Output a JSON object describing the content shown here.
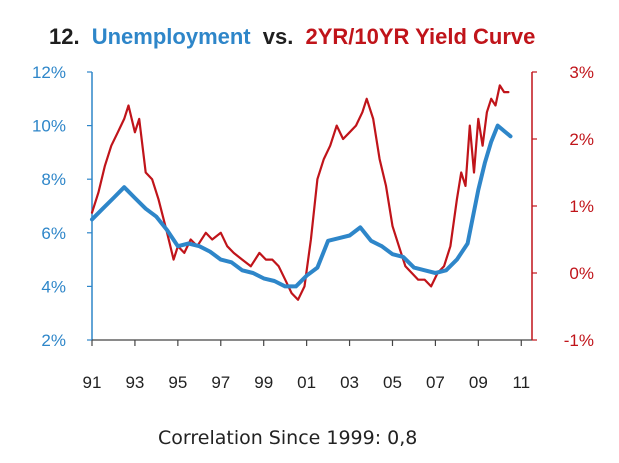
{
  "title": {
    "number": "12.",
    "left_series_name": "Unemployment",
    "joiner": "vs.",
    "right_series_name": "2YR/10YR Yield Curve"
  },
  "footnote": "Correlation Since 1999: 0,8",
  "colors": {
    "unemployment": "#2e86c9",
    "yield_curve": "#c0141a",
    "title_dark": "#1f1f1f",
    "axis": "#444444"
  },
  "chart_data": {
    "type": "line",
    "title": "12. Unemployment vs. 2YR/10YR Yield Curve",
    "x_tick_labels": [
      "91",
      "93",
      "95",
      "97",
      "99",
      "01",
      "03",
      "05",
      "07",
      "09",
      "11"
    ],
    "x_tick_years": [
      1991,
      1993,
      1995,
      1997,
      1999,
      2001,
      2003,
      2005,
      2007,
      2009,
      2011
    ],
    "xlim": [
      1991.0,
      2011.5
    ],
    "y_left": {
      "tick_labels": [
        "12%",
        "10%",
        "8%",
        "6%",
        "4%",
        "2%"
      ],
      "ticks": [
        12,
        10,
        8,
        6,
        4,
        2
      ],
      "lim": [
        2,
        12
      ],
      "unit": "%"
    },
    "y_right": {
      "tick_labels": [
        "3%",
        "2%",
        "1%",
        "0%",
        "-1%"
      ],
      "ticks": [
        3,
        2,
        1,
        0,
        -1
      ],
      "lim": [
        -1,
        3
      ],
      "unit": "%"
    },
    "grid": false,
    "legend": "none",
    "series": [
      {
        "name": "Unemployment",
        "axis": "left",
        "color": "#2e86c9",
        "x": [
          1991.0,
          1991.5,
          1992.0,
          1992.5,
          1993.0,
          1993.5,
          1994.0,
          1994.5,
          1995.0,
          1995.5,
          1996.0,
          1996.5,
          1997.0,
          1997.5,
          1998.0,
          1998.5,
          1999.0,
          1999.5,
          2000.0,
          2000.5,
          2001.0,
          2001.5,
          2002.0,
          2002.5,
          2003.0,
          2003.5,
          2004.0,
          2004.5,
          2005.0,
          2005.5,
          2006.0,
          2006.5,
          2007.0,
          2007.5,
          2008.0,
          2008.5,
          2009.0,
          2009.3,
          2009.6,
          2009.9,
          2010.2,
          2010.5
        ],
        "values": [
          6.5,
          6.9,
          7.3,
          7.7,
          7.3,
          6.9,
          6.6,
          6.1,
          5.5,
          5.6,
          5.5,
          5.3,
          5.0,
          4.9,
          4.6,
          4.5,
          4.3,
          4.2,
          4.0,
          4.0,
          4.4,
          4.7,
          5.7,
          5.8,
          5.9,
          6.2,
          5.7,
          5.5,
          5.2,
          5.1,
          4.7,
          4.6,
          4.5,
          4.6,
          5.0,
          5.6,
          7.6,
          8.6,
          9.4,
          10.0,
          9.8,
          9.6
        ]
      },
      {
        "name": "2YR/10YR Yield Curve",
        "axis": "right",
        "color": "#c0141a",
        "x": [
          1991.0,
          1991.3,
          1991.6,
          1991.9,
          1992.2,
          1992.5,
          1992.7,
          1993.0,
          1993.2,
          1993.5,
          1993.8,
          1994.1,
          1994.5,
          1994.8,
          1995.0,
          1995.3,
          1995.6,
          1995.9,
          1996.3,
          1996.6,
          1997.0,
          1997.3,
          1997.6,
          1998.0,
          1998.4,
          1998.8,
          1999.1,
          1999.4,
          1999.7,
          2000.0,
          2000.3,
          2000.6,
          2000.9,
          2001.2,
          2001.5,
          2001.8,
          2002.1,
          2002.4,
          2002.7,
          2003.0,
          2003.3,
          2003.6,
          2003.8,
          2004.1,
          2004.4,
          2004.7,
          2005.0,
          2005.3,
          2005.6,
          2005.9,
          2006.2,
          2006.5,
          2006.8,
          2007.1,
          2007.4,
          2007.7,
          2008.0,
          2008.2,
          2008.4,
          2008.6,
          2008.8,
          2009.0,
          2009.2,
          2009.4,
          2009.6,
          2009.8,
          2010.0,
          2010.2,
          2010.4
        ],
        "values": [
          0.9,
          1.2,
          1.6,
          1.9,
          2.1,
          2.3,
          2.5,
          2.1,
          2.3,
          1.5,
          1.4,
          1.1,
          0.6,
          0.2,
          0.4,
          0.3,
          0.5,
          0.4,
          0.6,
          0.5,
          0.6,
          0.4,
          0.3,
          0.2,
          0.1,
          0.3,
          0.2,
          0.2,
          0.1,
          -0.1,
          -0.3,
          -0.4,
          -0.2,
          0.5,
          1.4,
          1.7,
          1.9,
          2.2,
          2.0,
          2.1,
          2.2,
          2.4,
          2.6,
          2.3,
          1.7,
          1.3,
          0.7,
          0.4,
          0.1,
          0.0,
          -0.1,
          -0.1,
          -0.2,
          0.0,
          0.1,
          0.4,
          1.1,
          1.5,
          1.3,
          2.2,
          1.5,
          2.3,
          1.9,
          2.4,
          2.6,
          2.5,
          2.8,
          2.7,
          2.7
        ]
      }
    ]
  }
}
